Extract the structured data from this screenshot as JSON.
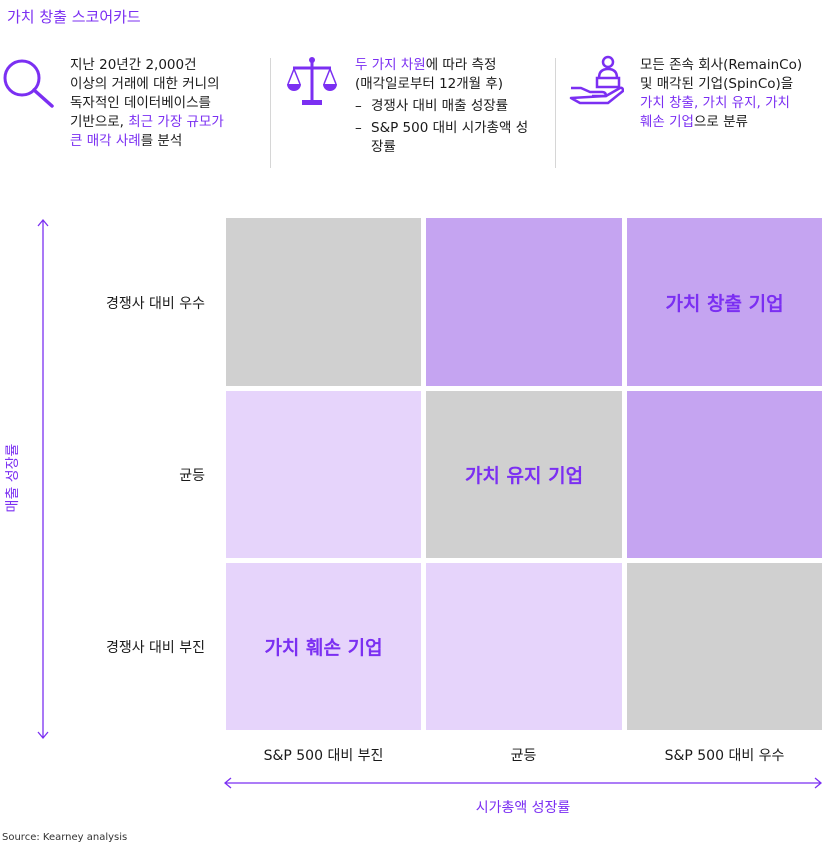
{
  "title": "가치 창출 스코어카드",
  "columns": [
    {
      "icon": "magnifier-icon",
      "lines": [
        {
          "plain": "지난 20년간 2,000건"
        },
        {
          "plain": "이상의 거래에 대한 커니의"
        },
        {
          "plain": "독자적인 데이터베이스를"
        },
        {
          "plain": "기반으로, ",
          "hl": "최근 가장 규모가"
        },
        {
          "hl": "큰 매각 사례",
          "plain": "를 분석"
        }
      ]
    },
    {
      "icon": "scale-icon",
      "line1_hl": "두 가지 차원",
      "line1_plain": "에 따라 측정",
      "line2": "(매각일로부터 12개월 후)",
      "items": [
        "경쟁사 대비 매출 성장률",
        "S&P 500 대비 시가총액 성장률"
      ]
    },
    {
      "icon": "hand-person-icon",
      "line1": "모든 존속 회사(RemainCo)",
      "line2": "및 매각된 기업(SpinCo)을",
      "line3_hl": "가치 창출, 가치 유지, 가치",
      "line4_hl": "훼손 기업",
      "line4_plain": "으로 분류"
    }
  ],
  "matrix": {
    "row_labels": [
      "경쟁사 대비 우수",
      "균등",
      "경쟁사 대비 부진"
    ],
    "col_labels": [
      "S&P 500 대비 부진",
      "균등",
      "S&P 500 대비 우수"
    ],
    "cells": [
      [
        "",
        "",
        "가치 창출 기업"
      ],
      [
        "",
        "가치 유지 기업",
        ""
      ],
      [
        "가치 훼손 기업",
        "",
        ""
      ]
    ],
    "x_axis_label": "시가총액 성장률",
    "y_axis_label": "매출 성장률"
  },
  "colors": {
    "accent": "#7b2ff2",
    "gray": "#d0d0d0",
    "mid_purple": "#c5a4f1",
    "light_purple": "#e6d4fb"
  },
  "source": "Source: Kearney analysis"
}
